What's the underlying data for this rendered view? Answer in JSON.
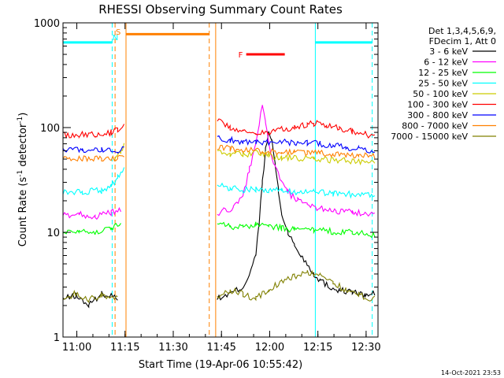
{
  "chart_data": {
    "type": "line",
    "title": "RHESSI Observing Summary Count Rates",
    "xlabel": "Start Time (19-Apr-06 10:55:42)",
    "ylabel": "Count Rate (s",
    "ylabel_sup1": "-1",
    "ylabel_mid": " detector",
    "ylabel_sup2": "-1",
    "ylabel_end": ")",
    "x_unit": "minutes since 10:55:42",
    "xlim": [
      0,
      98
    ],
    "ylim": [
      1,
      1000
    ],
    "y_scale": "log",
    "x_ticks": [
      {
        "label": "11:00",
        "value": 4.3
      },
      {
        "label": "11:15",
        "value": 19.3
      },
      {
        "label": "11:30",
        "value": 34.3
      },
      {
        "label": "11:45",
        "value": 49.3
      },
      {
        "label": "12:00",
        "value": 64.3
      },
      {
        "label": "12:15",
        "value": 79.3
      },
      {
        "label": "12:30",
        "value": 94.3
      }
    ],
    "y_ticks": [
      {
        "label": "1",
        "value": 1
      },
      {
        "label": "10",
        "value": 10
      },
      {
        "label": "100",
        "value": 100
      },
      {
        "label": "1000",
        "value": 1000
      }
    ],
    "legend": {
      "placement": "right",
      "header": [
        "Det 1,3,4,5,6,9,",
        "FDecim 1, Att 0"
      ]
    },
    "series": [
      {
        "name": "3 - 6 keV",
        "color": "#000000",
        "points": [
          [
            0,
            2.3
          ],
          [
            4,
            2.5
          ],
          [
            8,
            2.0
          ],
          [
            12,
            2.6
          ],
          [
            17,
            2.4
          ],
          [
            22,
            null
          ],
          [
            48,
            2.3
          ],
          [
            52,
            2.6
          ],
          [
            56,
            3.0
          ],
          [
            58,
            4.0
          ],
          [
            60,
            6.0
          ],
          [
            61,
            12
          ],
          [
            62,
            30
          ],
          [
            63,
            60
          ],
          [
            64,
            90
          ],
          [
            65,
            75
          ],
          [
            66,
            45
          ],
          [
            67,
            25
          ],
          [
            68,
            15
          ],
          [
            70,
            10
          ],
          [
            72,
            7.5
          ],
          [
            74,
            6.0
          ],
          [
            76,
            5.0
          ],
          [
            78,
            4.0
          ],
          [
            80,
            3.5
          ],
          [
            83,
            3.0
          ],
          [
            86,
            2.8
          ],
          [
            90,
            2.7
          ],
          [
            94,
            2.5
          ],
          [
            97,
            2.6
          ]
        ]
      },
      {
        "name": "6 - 12 keV",
        "color": "#ff00ff",
        "points": [
          [
            0,
            14.5
          ],
          [
            5,
            15
          ],
          [
            10,
            14
          ],
          [
            15,
            15.5
          ],
          [
            18,
            16
          ],
          [
            22,
            null
          ],
          [
            48,
            15
          ],
          [
            50,
            16
          ],
          [
            53,
            17
          ],
          [
            56,
            22
          ],
          [
            58,
            40
          ],
          [
            60,
            70
          ],
          [
            61,
            110
          ],
          [
            62,
            155
          ],
          [
            63,
            110
          ],
          [
            64,
            70
          ],
          [
            66,
            42
          ],
          [
            68,
            30
          ],
          [
            70,
            24
          ],
          [
            73,
            20
          ],
          [
            76,
            18
          ],
          [
            80,
            17
          ],
          [
            85,
            16
          ],
          [
            90,
            15.5
          ],
          [
            97,
            15
          ]
        ]
      },
      {
        "name": "12 - 25 keV",
        "color": "#00ff00",
        "points": [
          [
            0,
            10
          ],
          [
            5,
            10.5
          ],
          [
            10,
            10
          ],
          [
            15,
            11
          ],
          [
            18,
            12
          ],
          [
            22,
            null
          ],
          [
            48,
            12.5
          ],
          [
            52,
            11.5
          ],
          [
            56,
            11
          ],
          [
            60,
            12
          ],
          [
            64,
            11.5
          ],
          [
            68,
            11
          ],
          [
            72,
            10.5
          ],
          [
            78,
            10.5
          ],
          [
            84,
            10.2
          ],
          [
            90,
            10
          ],
          [
            97,
            9.5
          ]
        ]
      },
      {
        "name": "25 - 50 keV",
        "color": "#00ffff",
        "points": [
          [
            0,
            24
          ],
          [
            6,
            24.5
          ],
          [
            12,
            25
          ],
          [
            15,
            28
          ],
          [
            17,
            33
          ],
          [
            19,
            42
          ],
          [
            22,
            null
          ],
          [
            48,
            28
          ],
          [
            52,
            26.5
          ],
          [
            56,
            25.5
          ],
          [
            60,
            26
          ],
          [
            64,
            25
          ],
          [
            68,
            25
          ],
          [
            72,
            24.5
          ],
          [
            78,
            24
          ],
          [
            84,
            23.5
          ],
          [
            90,
            23
          ],
          [
            97,
            22.5
          ]
        ]
      },
      {
        "name": "50 - 100 keV",
        "color": "#cccc00",
        "points": [
          [
            16,
            52
          ],
          [
            18,
            58
          ],
          [
            19,
            70
          ],
          [
            22,
            null
          ],
          [
            48,
            58
          ],
          [
            52,
            56
          ],
          [
            56,
            55
          ],
          [
            60,
            58
          ],
          [
            64,
            54
          ],
          [
            68,
            52
          ],
          [
            72,
            51
          ],
          [
            78,
            50
          ],
          [
            84,
            49
          ],
          [
            90,
            48
          ],
          [
            97,
            47
          ]
        ]
      },
      {
        "name": "100 - 300 keV",
        "color": "#ff0000",
        "points": [
          [
            0,
            85
          ],
          [
            5,
            86
          ],
          [
            10,
            87
          ],
          [
            15,
            90
          ],
          [
            17,
            96
          ],
          [
            19,
            105
          ],
          [
            22,
            null
          ],
          [
            48,
            118
          ],
          [
            52,
            100
          ],
          [
            56,
            92
          ],
          [
            60,
            88
          ],
          [
            64,
            90
          ],
          [
            68,
            96
          ],
          [
            72,
            100
          ],
          [
            76,
            108
          ],
          [
            78,
            110
          ],
          [
            82,
            106
          ],
          [
            86,
            100
          ],
          [
            90,
            92
          ],
          [
            94,
            87
          ],
          [
            97,
            82
          ]
        ]
      },
      {
        "name": "300 - 800 keV",
        "color": "#0000ff",
        "points": [
          [
            0,
            61
          ],
          [
            6,
            62
          ],
          [
            12,
            61.5
          ],
          [
            17,
            61
          ],
          [
            19,
            62
          ],
          [
            22,
            null
          ],
          [
            48,
            80
          ],
          [
            52,
            76
          ],
          [
            56,
            74
          ],
          [
            60,
            72
          ],
          [
            64,
            72
          ],
          [
            68,
            73
          ],
          [
            72,
            71
          ],
          [
            76,
            72
          ],
          [
            80,
            70
          ],
          [
            84,
            68
          ],
          [
            88,
            65
          ],
          [
            92,
            62
          ],
          [
            97,
            59
          ]
        ]
      },
      {
        "name": "800 - 7000 keV",
        "color": "#ff8000",
        "points": [
          [
            0,
            50
          ],
          [
            6,
            50.5
          ],
          [
            12,
            50
          ],
          [
            17,
            50.5
          ],
          [
            19,
            52
          ],
          [
            22,
            null
          ],
          [
            48,
            66
          ],
          [
            52,
            63
          ],
          [
            56,
            61
          ],
          [
            60,
            60
          ],
          [
            64,
            59
          ],
          [
            68,
            58.5
          ],
          [
            72,
            58
          ],
          [
            76,
            58
          ],
          [
            80,
            57
          ],
          [
            84,
            56
          ],
          [
            88,
            55
          ],
          [
            92,
            54
          ],
          [
            97,
            53
          ]
        ]
      },
      {
        "name": "7000 - 15000 keV",
        "color": "#808000",
        "points": [
          [
            0,
            2.3
          ],
          [
            4,
            2.6
          ],
          [
            8,
            2.3
          ],
          [
            12,
            2.5
          ],
          [
            17,
            2.4
          ],
          [
            22,
            null
          ],
          [
            48,
            2.3
          ],
          [
            52,
            2.8
          ],
          [
            56,
            2.6
          ],
          [
            60,
            2.3
          ],
          [
            64,
            2.9
          ],
          [
            68,
            3.3
          ],
          [
            72,
            3.8
          ],
          [
            76,
            4.2
          ],
          [
            80,
            3.9
          ],
          [
            84,
            3.3
          ],
          [
            88,
            2.8
          ],
          [
            92,
            2.5
          ],
          [
            97,
            2.3
          ]
        ]
      }
    ],
    "markers": [
      {
        "x": 15.3,
        "color": "#00ffff",
        "style": "dashed",
        "label": "N"
      },
      {
        "x": 16.2,
        "color": "#ff8000",
        "style": "dashed",
        "label": "S"
      },
      {
        "x": 19.6,
        "color": "#ff8000",
        "style": "solid"
      },
      {
        "x": 45.5,
        "color": "#ff8000",
        "style": "dashed"
      },
      {
        "x": 47.5,
        "color": "#ff8000",
        "style": "solid"
      },
      {
        "x": 78.5,
        "color": "#00ffff",
        "style": "solid"
      },
      {
        "x": 96.2,
        "color": "#00ffff",
        "style": "dashed"
      }
    ],
    "bars": [
      {
        "x1": 0,
        "x2": 15.3,
        "y": 650,
        "color": "#00ffff"
      },
      {
        "x1": 19.6,
        "x2": 45.5,
        "y": 780,
        "color": "#ff8000"
      },
      {
        "x1": 57.0,
        "x2": 69.0,
        "y": 500,
        "color": "#ff0000",
        "label": "F",
        "label_color": "#ff0000"
      },
      {
        "x1": 78.5,
        "x2": 96.2,
        "y": 650,
        "color": "#00ffff"
      }
    ],
    "footer_timestamp": "14-Oct-2021 23:53"
  }
}
